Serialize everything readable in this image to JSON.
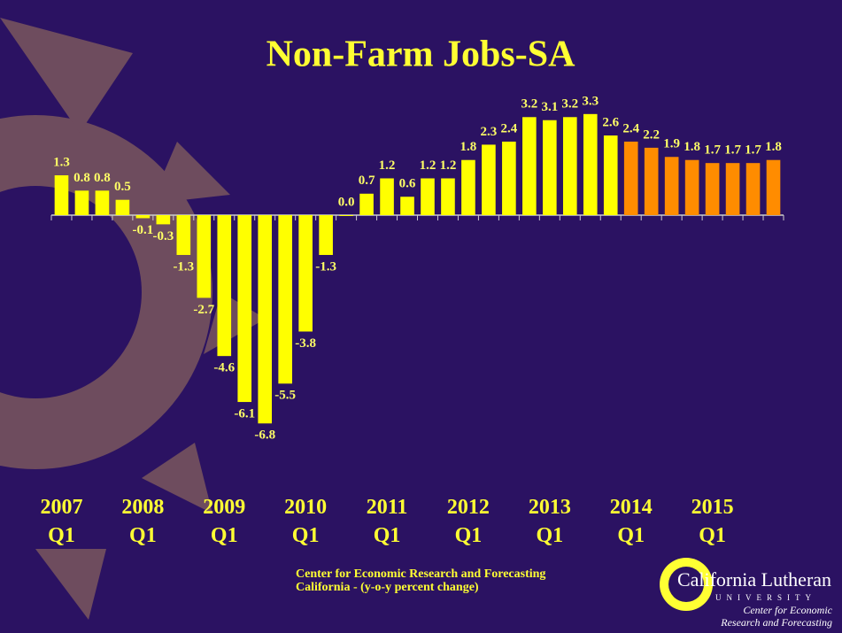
{
  "chart_data": {
    "type": "bar",
    "title": "Non-Farm Jobs-SA",
    "categories": [
      "2007 Q1",
      null,
      null,
      null,
      "2008 Q1",
      null,
      null,
      null,
      "2009 Q1",
      null,
      null,
      null,
      "2010 Q1",
      null,
      null,
      null,
      "2011 Q1",
      null,
      null,
      null,
      "2012 Q1",
      null,
      null,
      null,
      "2013 Q1",
      null,
      null,
      null,
      "2014 Q1",
      null,
      null,
      null,
      "2015 Q1",
      null,
      null,
      null
    ],
    "values": [
      1.3,
      0.8,
      0.8,
      0.5,
      -0.1,
      -0.3,
      -1.3,
      -2.7,
      -4.6,
      -6.1,
      -6.8,
      -5.5,
      -3.8,
      -1.3,
      0.0,
      0.7,
      1.2,
      0.6,
      1.2,
      1.2,
      1.8,
      2.3,
      2.4,
      3.2,
      3.1,
      3.2,
      3.3,
      2.6,
      2.4,
      2.2,
      1.9,
      1.8,
      1.7,
      1.7,
      1.7,
      1.8
    ],
    "value_labels": [
      "1.3",
      "0.8",
      "0.8",
      "0.5",
      "-0.1",
      "-0.3",
      "-1.3",
      "-2.7",
      "-4.6",
      "-6.1",
      "-6.8",
      "-5.5",
      "-3.8",
      "-1.3",
      "0.0",
      "0.7",
      "1.2",
      "0.6",
      "1.2",
      "1.2",
      "1.8",
      "2.3",
      "2.4",
      "3.2",
      "3.1",
      "3.2",
      "3.3",
      "2.6",
      "2.4",
      "2.2",
      "1.9",
      "1.8",
      "1.7",
      "1.7",
      "1.7",
      "1.8"
    ],
    "colors": [
      "#ffff00",
      "#ffff00",
      "#ffff00",
      "#ffff00",
      "#ffff00",
      "#ffff00",
      "#ffff00",
      "#ffff00",
      "#ffff00",
      "#ffff00",
      "#ffff00",
      "#ffff00",
      "#ffff00",
      "#ffff00",
      "#ffff00",
      "#ffff00",
      "#ffff00",
      "#ffff00",
      "#ffff00",
      "#ffff00",
      "#ffff00",
      "#ffff00",
      "#ffff00",
      "#ffff00",
      "#ffff00",
      "#ffff00",
      "#ffff00",
      "#ffff00",
      "#ff8c00",
      "#ff8c00",
      "#ff8c00",
      "#ff8c00",
      "#ff8c00",
      "#ff8c00",
      "#ff8c00",
      "#ff8c00"
    ],
    "ylim": [
      -7,
      4
    ]
  },
  "footer": {
    "line1": "Center for Economic Research and Forecasting",
    "line2": "California - (y-o-y percent change)"
  },
  "logo": {
    "name": "California Lutheran",
    "sub": "UNIVERSITY",
    "center1": "Center for Economic",
    "center2": "Research and Forecasting"
  }
}
